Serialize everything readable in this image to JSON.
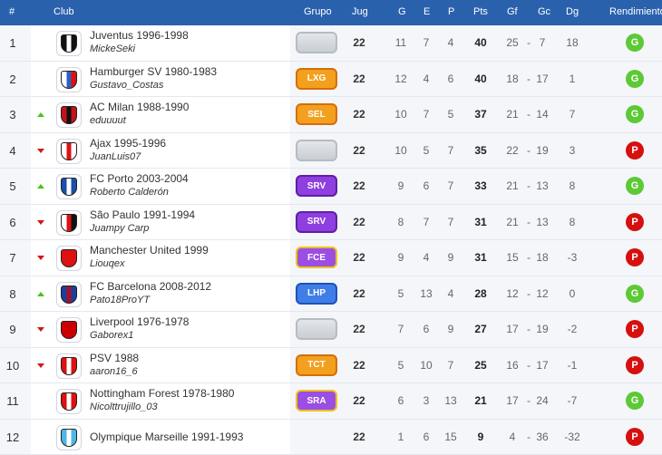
{
  "header": {
    "rank": "#",
    "club": "Club",
    "grupo": "Grupo",
    "jug": "Jug",
    "g": "G",
    "e": "E",
    "p": "P",
    "pts": "Pts",
    "gf": "Gf",
    "gc": "Gc",
    "dg": "Dg",
    "rendimiento": "Rendimiento"
  },
  "colors": {
    "header_bg": "#2a61ad",
    "win": "#5cc935",
    "loss": "#d60f0f",
    "trend_up": "#4cc21f",
    "trend_down": "#d11818"
  },
  "rows": [
    {
      "pos": "1",
      "trend": "",
      "club": "Juventus 1996-1998",
      "user": "MickeSeki",
      "grupo": "",
      "jug": "22",
      "g": "11",
      "e": "7",
      "p": "4",
      "pts": "40",
      "gf": "25",
      "sep": "-",
      "gc": "7",
      "dg": "18",
      "result": "G",
      "crest": [
        "#111",
        "#fff",
        "#111"
      ]
    },
    {
      "pos": "2",
      "trend": "",
      "club": "Hamburger SV 1980-1983",
      "user": "Gustavo_Costas",
      "grupo": "LXG",
      "jug": "22",
      "g": "12",
      "e": "4",
      "p": "6",
      "pts": "40",
      "gf": "18",
      "sep": "-",
      "gc": "17",
      "dg": "1",
      "result": "G",
      "crest": [
        "#fff",
        "#2c5fbf",
        "#d11"
      ]
    },
    {
      "pos": "3",
      "trend": "up",
      "club": "AC Milan 1988-1990",
      "user": "eduuuut",
      "grupo": "SEL",
      "jug": "22",
      "g": "10",
      "e": "7",
      "p": "5",
      "pts": "37",
      "gf": "21",
      "sep": "-",
      "gc": "14",
      "dg": "7",
      "result": "G",
      "crest": [
        "#c4121a",
        "#111",
        "#c4121a"
      ]
    },
    {
      "pos": "4",
      "trend": "down",
      "club": "Ajax 1995-1996",
      "user": "JuanLuis07",
      "grupo": "",
      "jug": "22",
      "g": "10",
      "e": "5",
      "p": "7",
      "pts": "35",
      "gf": "22",
      "sep": "-",
      "gc": "19",
      "dg": "3",
      "result": "P",
      "crest": [
        "#fff",
        "#d11",
        "#fff"
      ]
    },
    {
      "pos": "5",
      "trend": "up",
      "club": "FC Porto 2003-2004",
      "user": "Roberto Calderón",
      "grupo": "SRV",
      "jug": "22",
      "g": "9",
      "e": "6",
      "p": "7",
      "pts": "33",
      "gf": "21",
      "sep": "-",
      "gc": "13",
      "dg": "8",
      "result": "G",
      "crest": [
        "#1b4fa8",
        "#fff",
        "#1b4fa8"
      ]
    },
    {
      "pos": "6",
      "trend": "down",
      "club": "São Paulo 1991-1994",
      "user": "Juampy Carp",
      "grupo": "SRV",
      "jug": "22",
      "g": "8",
      "e": "7",
      "p": "7",
      "pts": "31",
      "gf": "21",
      "sep": "-",
      "gc": "13",
      "dg": "8",
      "result": "P",
      "crest": [
        "#fff",
        "#d11",
        "#111"
      ]
    },
    {
      "pos": "7",
      "trend": "down",
      "club": "Manchester United 1999",
      "user": "Liouqex",
      "grupo": "FCE",
      "jug": "22",
      "g": "9",
      "e": "4",
      "p": "9",
      "pts": "31",
      "gf": "15",
      "sep": "-",
      "gc": "18",
      "dg": "-3",
      "result": "P",
      "crest": [
        "#d11",
        "#d11",
        "#d11"
      ]
    },
    {
      "pos": "8",
      "trend": "up",
      "club": "FC Barcelona 2008-2012",
      "user": "Pato18ProYT",
      "grupo": "LHP",
      "jug": "22",
      "g": "5",
      "e": "13",
      "p": "4",
      "pts": "28",
      "gf": "12",
      "sep": "-",
      "gc": "12",
      "dg": "0",
      "result": "G",
      "crest": [
        "#1b3f9a",
        "#a5102a",
        "#1b3f9a"
      ]
    },
    {
      "pos": "9",
      "trend": "down",
      "club": "Liverpool 1976-1978",
      "user": "Gaborex1",
      "grupo": "",
      "jug": "22",
      "g": "7",
      "e": "6",
      "p": "9",
      "pts": "27",
      "gf": "17",
      "sep": "-",
      "gc": "19",
      "dg": "-2",
      "result": "P",
      "crest": [
        "#c00",
        "#c00",
        "#c00"
      ]
    },
    {
      "pos": "10",
      "trend": "down",
      "club": "PSV 1988",
      "user": "aaron16_6",
      "grupo": "TCT",
      "jug": "22",
      "g": "5",
      "e": "10",
      "p": "7",
      "pts": "25",
      "gf": "16",
      "sep": "-",
      "gc": "17",
      "dg": "-1",
      "result": "P",
      "crest": [
        "#d11",
        "#fff",
        "#d11"
      ]
    },
    {
      "pos": "11",
      "trend": "",
      "club": "Nottingham Forest 1978-1980",
      "user": "Nicolttrujillo_03",
      "grupo": "SRA",
      "jug": "22",
      "g": "6",
      "e": "3",
      "p": "13",
      "pts": "21",
      "gf": "17",
      "sep": "-",
      "gc": "24",
      "dg": "-7",
      "result": "G",
      "crest": [
        "#d11",
        "#fff",
        "#d11"
      ]
    },
    {
      "pos": "12",
      "trend": "",
      "club": "Olympique Marseille 1991-1993",
      "user": "",
      "grupo": "",
      "jug": "22",
      "g": "1",
      "e": "6",
      "p": "15",
      "pts": "9",
      "gf": "4",
      "sep": "-",
      "gc": "36",
      "dg": "-32",
      "result": "P",
      "crest": [
        "#4fb6e6",
        "#fff",
        "#4fb6e6"
      ]
    }
  ],
  "grupo_styles": {
    "LXG": {
      "bg": "#f2a01e",
      "border": "#d66d09"
    },
    "SEL": {
      "bg": "#f2a01e",
      "border": "#d66d09"
    },
    "SRV": {
      "bg": "#8f3ee0",
      "border": "#5d1fa6"
    },
    "FCE": {
      "bg": "#9a4ee4",
      "border": "#f0c21a"
    },
    "LHP": {
      "bg": "#3f7ee8",
      "border": "#1f52b7"
    },
    "TCT": {
      "bg": "#f2a01e",
      "border": "#d66d09"
    },
    "SRA": {
      "bg": "#9a4ee4",
      "border": "#f0c21a"
    }
  }
}
